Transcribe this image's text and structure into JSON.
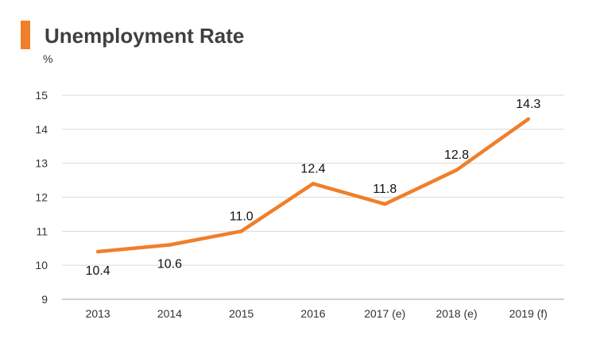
{
  "colors": {
    "accent": "#f07f2a",
    "grid": "#d9d9d9",
    "axis": "#a6a6a6"
  },
  "chart_data": {
    "type": "line",
    "title": "Unemployment Rate",
    "unit": "%",
    "categories": [
      "2013",
      "2014",
      "2015",
      "2016",
      "2017 (e)",
      "2018 (e)",
      "2019 (f)"
    ],
    "series": [
      {
        "values": [
          10.4,
          10.6,
          11.0,
          12.4,
          11.8,
          12.8,
          14.3
        ]
      }
    ],
    "data_labels": [
      "10.4",
      "10.6",
      "11.0",
      "12.4",
      "11.8",
      "12.8",
      "14.3"
    ],
    "ylim": [
      9,
      15
    ],
    "yticks": [
      "9",
      "10",
      "11",
      "12",
      "13",
      "14",
      "15"
    ],
    "grid": true,
    "legend": "none"
  }
}
